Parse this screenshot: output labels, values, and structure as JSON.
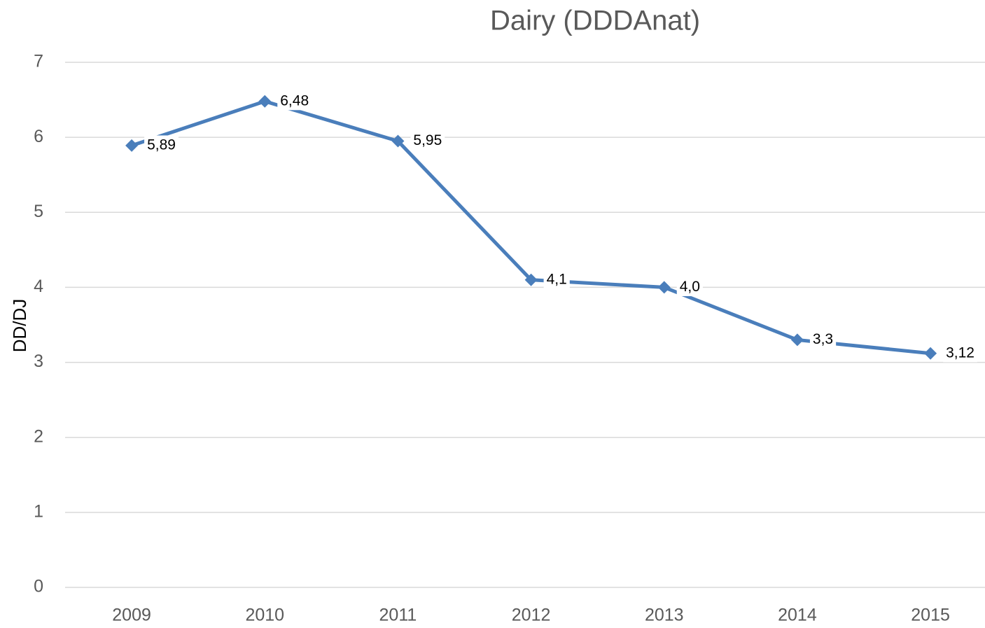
{
  "chart_data": {
    "type": "line",
    "title": "Dairy (DDDAnat)",
    "y_label": "DD/DJ",
    "categories": [
      "2009",
      "2010",
      "2011",
      "2012",
      "2013",
      "2014",
      "2015"
    ],
    "series": [
      {
        "name": "Dairy",
        "color": "#4a7ebb",
        "values": [
          5.89,
          6.48,
          5.95,
          4.1,
          4.0,
          3.3,
          3.12
        ],
        "value_labels": [
          "5,89",
          "6,48",
          "5,95",
          "4,1",
          "4,0",
          "3,3",
          "3,12"
        ]
      }
    ],
    "ylim": [
      0,
      7
    ],
    "yticks": [
      0,
      1,
      2,
      3,
      4,
      5,
      6,
      7
    ],
    "grid": true
  }
}
